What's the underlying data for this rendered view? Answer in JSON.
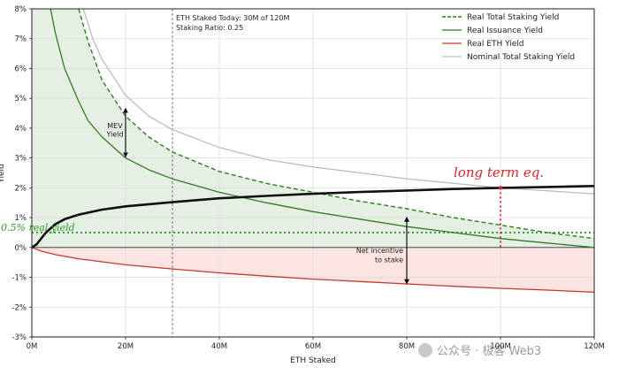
{
  "chart_data": {
    "type": "line",
    "xlabel": "ETH Staked",
    "ylabel": "Yield",
    "xlim": [
      0,
      120
    ],
    "ylim": [
      -3,
      8
    ],
    "x_ticks": [
      {
        "v": 0,
        "label": "0M"
      },
      {
        "v": 20,
        "label": "20M"
      },
      {
        "v": 40,
        "label": "40M"
      },
      {
        "v": 60,
        "label": "60M"
      },
      {
        "v": 80,
        "label": "80M"
      },
      {
        "v": 100,
        "label": "100M"
      },
      {
        "v": 120,
        "label": "120M"
      }
    ],
    "y_ticks": [
      {
        "v": -3,
        "label": "-3%"
      },
      {
        "v": -2,
        "label": "-2%"
      },
      {
        "v": -1,
        "label": "-1%"
      },
      {
        "v": 0,
        "label": "0%"
      },
      {
        "v": 1,
        "label": "1%"
      },
      {
        "v": 2,
        "label": "2%"
      },
      {
        "v": 3,
        "label": "3%"
      },
      {
        "v": 4,
        "label": "4%"
      },
      {
        "v": 5,
        "label": "5%"
      },
      {
        "v": 6,
        "label": "6%"
      },
      {
        "v": 7,
        "label": "7%"
      },
      {
        "v": 8,
        "label": "8%"
      }
    ],
    "grid": true,
    "legend_position": "top-right",
    "series": [
      {
        "name": "Real Total Staking Yield",
        "color": "#2e7d1e",
        "style": "dashed",
        "x": [
          10,
          12,
          15,
          20,
          25,
          30,
          40,
          50,
          60,
          70,
          80,
          90,
          100,
          110,
          120
        ],
        "y": [
          8.0,
          6.9,
          5.6,
          4.4,
          3.7,
          3.2,
          2.55,
          2.15,
          1.85,
          1.55,
          1.3,
          1.0,
          0.75,
          0.5,
          0.3
        ]
      },
      {
        "name": "Real Issuance Yield",
        "color": "#2e7d1e",
        "style": "solid",
        "x": [
          4,
          5,
          7,
          10,
          12,
          15,
          20,
          25,
          30,
          40,
          50,
          60,
          70,
          80,
          90,
          100,
          110,
          120
        ],
        "y": [
          8.0,
          7.2,
          6.0,
          4.9,
          4.25,
          3.7,
          3.0,
          2.6,
          2.3,
          1.85,
          1.5,
          1.2,
          0.95,
          0.7,
          0.5,
          0.3,
          0.15,
          0.0
        ]
      },
      {
        "name": "Real ETH Yield",
        "color": "#c0392b",
        "style": "solid",
        "x": [
          0,
          2,
          5,
          10,
          20,
          30,
          40,
          50,
          60,
          70,
          80,
          90,
          100,
          110,
          120
        ],
        "y": [
          0.0,
          -0.12,
          -0.24,
          -0.38,
          -0.58,
          -0.72,
          -0.85,
          -0.96,
          -1.06,
          -1.14,
          -1.22,
          -1.3,
          -1.37,
          -1.43,
          -1.5
        ]
      },
      {
        "name": "Nominal Total Staking Yield",
        "color": "#bdbdbd",
        "style": "solid",
        "x": [
          11,
          13,
          15,
          20,
          25,
          30,
          40,
          50,
          60,
          70,
          80,
          90,
          100,
          110,
          120
        ],
        "y": [
          8.0,
          7.0,
          6.3,
          5.1,
          4.4,
          3.95,
          3.35,
          2.95,
          2.7,
          2.5,
          2.3,
          2.15,
          2.0,
          1.9,
          1.8
        ]
      },
      {
        "name": "",
        "color": "#111111",
        "style": "solid-thick",
        "x": [
          0,
          1,
          2,
          3,
          5,
          7,
          10,
          15,
          20,
          30,
          40,
          50,
          60,
          70,
          80,
          90,
          100,
          110,
          120
        ],
        "y": [
          0.0,
          0.1,
          0.3,
          0.5,
          0.78,
          0.95,
          1.1,
          1.27,
          1.38,
          1.52,
          1.65,
          1.73,
          1.8,
          1.86,
          1.91,
          1.96,
          2.0,
          2.03,
          2.06
        ]
      }
    ],
    "annotations": {
      "info_line1": "ETH Staked Today:  30M of 120M",
      "info_line2": "Staking Ratio:        0.25",
      "today_x": 30,
      "mev_label_line1": "MEV",
      "mev_label_line2": "Yield",
      "mev_arrow": {
        "x": 20,
        "y_top": 4.6,
        "y_bottom": 3.1
      },
      "net_label_line1": "Net incentive",
      "net_label_line2": "to stake",
      "net_arrow": {
        "x": 80,
        "y_top": 0.95,
        "y_bottom": -1.15
      },
      "real_yield_label": "0.5% real yield",
      "real_yield_value": 0.5,
      "long_term_label": "long term eq.",
      "long_term_x": 100,
      "long_term_y": 2.0
    },
    "watermark": "公众号 · 极客 Web3"
  }
}
